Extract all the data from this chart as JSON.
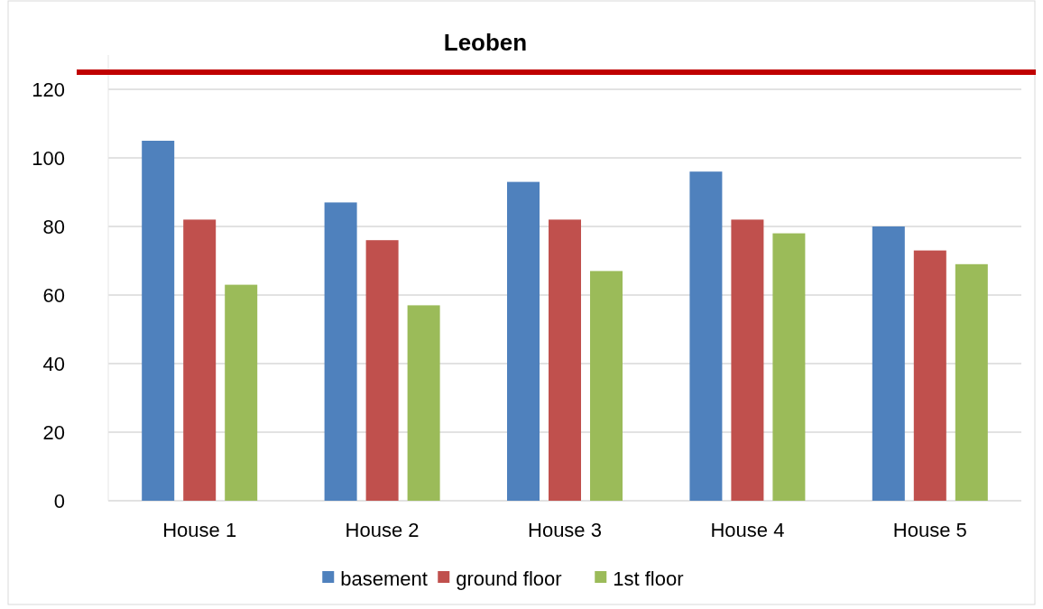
{
  "chart_data": {
    "type": "bar",
    "title": "Leoben",
    "categories": [
      "House 1",
      "House 2",
      "House 3",
      "House 4",
      "House 5"
    ],
    "series": [
      {
        "name": "basement",
        "color": "#4f81bd",
        "values": [
          105,
          87,
          93,
          96,
          80
        ]
      },
      {
        "name": "ground floor",
        "color": "#c0504d",
        "values": [
          82,
          76,
          82,
          82,
          73
        ]
      },
      {
        "name": "1st floor",
        "color": "#9bbb59",
        "values": [
          63,
          57,
          67,
          78,
          69
        ]
      }
    ],
    "ylim": [
      0,
      130
    ],
    "yticks": [
      0,
      20,
      40,
      60,
      80,
      100,
      120
    ],
    "grid": "y",
    "legend": "bottom",
    "ref_lines": [
      {
        "axis": "y",
        "value": 125,
        "color": "#c00000"
      }
    ]
  }
}
